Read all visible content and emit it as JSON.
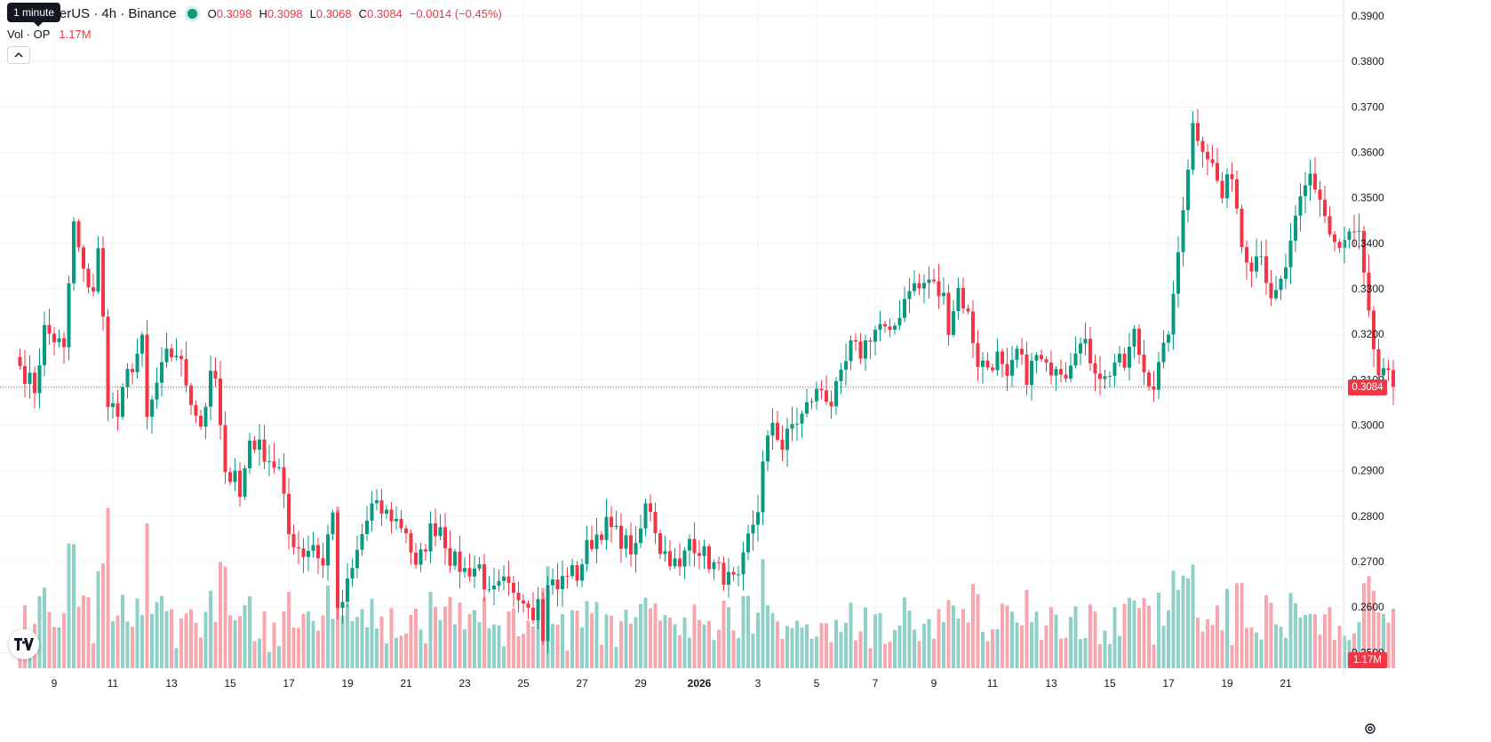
{
  "legend": {
    "tooltip": "1 minute",
    "symbol": "etherUS · 4h · Binance",
    "open_label": "O",
    "open": "0.3098",
    "high_label": "H",
    "high": "0.3098",
    "low_label": "L",
    "low": "0.3068",
    "close_label": "C",
    "close": "0.3084",
    "change": "−0.0014 (−0.45%)",
    "vol_label": "Vol · OP",
    "vol_value": "1.17M"
  },
  "price_tag": "0.3084",
  "volume_tag": "1.17M",
  "colors": {
    "up": "#089981",
    "down": "#f23645",
    "up_volume": "#8fd0c7",
    "down_volume": "#f7a7ad",
    "grid": "#f0f3fa"
  },
  "icons": [
    "tradingview-logo-icon",
    "gear-icon",
    "chevron-up-icon"
  ],
  "chart_data": {
    "type": "candlestick",
    "y_ticks": [
      "0.3900",
      "0.3800",
      "0.3700",
      "0.3600",
      "0.3500",
      "0.3400",
      "0.3300",
      "0.3200",
      "0.3100",
      "0.3000",
      "0.2900",
      "0.2800",
      "0.2700",
      "0.2600",
      "0.2500"
    ],
    "ylim": [
      0.245,
      0.3935
    ],
    "x_ticks": [
      {
        "label": "9",
        "index": 7
      },
      {
        "label": "11",
        "index": 19
      },
      {
        "label": "13",
        "index": 31
      },
      {
        "label": "15",
        "index": 43
      },
      {
        "label": "17",
        "index": 55
      },
      {
        "label": "19",
        "index": 67
      },
      {
        "label": "21",
        "index": 79
      },
      {
        "label": "23",
        "index": 91
      },
      {
        "label": "25",
        "index": 103
      },
      {
        "label": "27",
        "index": 115
      },
      {
        "label": "29",
        "index": 127
      },
      {
        "label": "2026",
        "index": 139,
        "bold": true
      },
      {
        "label": "3",
        "index": 151
      },
      {
        "label": "5",
        "index": 163
      },
      {
        "label": "7",
        "index": 175
      },
      {
        "label": "9",
        "index": 187
      },
      {
        "label": "11",
        "index": 199
      },
      {
        "label": "13",
        "index": 211
      },
      {
        "label": "15",
        "index": 223
      },
      {
        "label": "17",
        "index": 235
      },
      {
        "label": "19",
        "index": 247
      },
      {
        "label": "21",
        "index": 259
      }
    ],
    "last_price": 0.3084,
    "volume_max": 2.7,
    "anchors": [
      {
        "i": 0,
        "c": 0.313
      },
      {
        "i": 3,
        "c": 0.308
      },
      {
        "i": 5,
        "c": 0.321
      },
      {
        "i": 8,
        "c": 0.318
      },
      {
        "i": 9,
        "c": 0.316
      },
      {
        "i": 10,
        "c": 0.331
      },
      {
        "i": 11,
        "c": 0.344
      },
      {
        "i": 13,
        "c": 0.333
      },
      {
        "i": 15,
        "c": 0.33
      },
      {
        "i": 16,
        "c": 0.338
      },
      {
        "i": 17,
        "c": 0.323
      },
      {
        "i": 18,
        "c": 0.306
      },
      {
        "i": 20,
        "c": 0.302
      },
      {
        "i": 22,
        "c": 0.311
      },
      {
        "i": 25,
        "c": 0.318
      },
      {
        "i": 26,
        "c": 0.301
      },
      {
        "i": 28,
        "c": 0.309
      },
      {
        "i": 30,
        "c": 0.315
      },
      {
        "i": 32,
        "c": 0.316
      },
      {
        "i": 33,
        "c": 0.313
      },
      {
        "i": 35,
        "c": 0.306
      },
      {
        "i": 37,
        "c": 0.3
      },
      {
        "i": 39,
        "c": 0.31
      },
      {
        "i": 40,
        "c": 0.31
      },
      {
        "i": 42,
        "c": 0.288
      },
      {
        "i": 44,
        "c": 0.291
      },
      {
        "i": 45,
        "c": 0.284
      },
      {
        "i": 47,
        "c": 0.297
      },
      {
        "i": 50,
        "c": 0.294
      },
      {
        "i": 53,
        "c": 0.29
      },
      {
        "i": 55,
        "c": 0.276
      },
      {
        "i": 58,
        "c": 0.272
      },
      {
        "i": 60,
        "c": 0.274
      },
      {
        "i": 62,
        "c": 0.269
      },
      {
        "i": 64,
        "c": 0.282
      },
      {
        "i": 65,
        "c": 0.258
      },
      {
        "i": 68,
        "c": 0.268
      },
      {
        "i": 70,
        "c": 0.276
      },
      {
        "i": 72,
        "c": 0.282
      },
      {
        "i": 74,
        "c": 0.281
      },
      {
        "i": 76,
        "c": 0.28
      },
      {
        "i": 79,
        "c": 0.277
      },
      {
        "i": 81,
        "c": 0.268
      },
      {
        "i": 84,
        "c": 0.277
      },
      {
        "i": 86,
        "c": 0.278
      },
      {
        "i": 88,
        "c": 0.271
      },
      {
        "i": 91,
        "c": 0.268
      },
      {
        "i": 94,
        "c": 0.269
      },
      {
        "i": 96,
        "c": 0.262
      },
      {
        "i": 99,
        "c": 0.265
      },
      {
        "i": 101,
        "c": 0.262
      },
      {
        "i": 103,
        "c": 0.263
      },
      {
        "i": 105,
        "c": 0.259
      },
      {
        "i": 106,
        "c": 0.264
      },
      {
        "i": 107,
        "c": 0.252
      },
      {
        "i": 108,
        "c": 0.266
      },
      {
        "i": 110,
        "c": 0.264
      },
      {
        "i": 112,
        "c": 0.268
      },
      {
        "i": 114,
        "c": 0.267
      },
      {
        "i": 116,
        "c": 0.273
      },
      {
        "i": 118,
        "c": 0.276
      },
      {
        "i": 120,
        "c": 0.278
      },
      {
        "i": 122,
        "c": 0.276
      },
      {
        "i": 124,
        "c": 0.274
      },
      {
        "i": 126,
        "c": 0.272
      },
      {
        "i": 128,
        "c": 0.282
      },
      {
        "i": 129,
        "c": 0.282
      },
      {
        "i": 131,
        "c": 0.273
      },
      {
        "i": 133,
        "c": 0.271
      },
      {
        "i": 135,
        "c": 0.268
      },
      {
        "i": 137,
        "c": 0.275
      },
      {
        "i": 139,
        "c": 0.273
      },
      {
        "i": 141,
        "c": 0.27
      },
      {
        "i": 143,
        "c": 0.268
      },
      {
        "i": 145,
        "c": 0.266
      },
      {
        "i": 147,
        "c": 0.265
      },
      {
        "i": 149,
        "c": 0.275
      },
      {
        "i": 151,
        "c": 0.282
      },
      {
        "i": 152,
        "c": 0.291
      },
      {
        "i": 154,
        "c": 0.301
      },
      {
        "i": 156,
        "c": 0.295
      },
      {
        "i": 158,
        "c": 0.3
      },
      {
        "i": 160,
        "c": 0.302
      },
      {
        "i": 162,
        "c": 0.306
      },
      {
        "i": 164,
        "c": 0.308
      },
      {
        "i": 166,
        "c": 0.305
      },
      {
        "i": 168,
        "c": 0.31
      },
      {
        "i": 170,
        "c": 0.317
      },
      {
        "i": 172,
        "c": 0.316
      },
      {
        "i": 174,
        "c": 0.32
      },
      {
        "i": 176,
        "c": 0.322
      },
      {
        "i": 178,
        "c": 0.319
      },
      {
        "i": 180,
        "c": 0.325
      },
      {
        "i": 182,
        "c": 0.331
      },
      {
        "i": 184,
        "c": 0.33
      },
      {
        "i": 186,
        "c": 0.332
      },
      {
        "i": 188,
        "c": 0.329
      },
      {
        "i": 189,
        "c": 0.328
      },
      {
        "i": 190,
        "c": 0.322
      },
      {
        "i": 192,
        "c": 0.33
      },
      {
        "i": 194,
        "c": 0.324
      },
      {
        "i": 196,
        "c": 0.314
      },
      {
        "i": 198,
        "c": 0.313
      },
      {
        "i": 200,
        "c": 0.315
      },
      {
        "i": 202,
        "c": 0.309
      },
      {
        "i": 204,
        "c": 0.316
      },
      {
        "i": 206,
        "c": 0.311
      },
      {
        "i": 208,
        "c": 0.315
      },
      {
        "i": 210,
        "c": 0.312
      },
      {
        "i": 212,
        "c": 0.314
      },
      {
        "i": 214,
        "c": 0.312
      },
      {
        "i": 216,
        "c": 0.318
      },
      {
        "i": 218,
        "c": 0.317
      },
      {
        "i": 220,
        "c": 0.313
      },
      {
        "i": 222,
        "c": 0.31
      },
      {
        "i": 224,
        "c": 0.314
      },
      {
        "i": 226,
        "c": 0.313
      },
      {
        "i": 228,
        "c": 0.32
      },
      {
        "i": 230,
        "c": 0.312
      },
      {
        "i": 232,
        "c": 0.309
      },
      {
        "i": 234,
        "c": 0.316
      },
      {
        "i": 236,
        "c": 0.327
      },
      {
        "i": 238,
        "c": 0.349
      },
      {
        "i": 240,
        "c": 0.366
      },
      {
        "i": 242,
        "c": 0.362
      },
      {
        "i": 244,
        "c": 0.357
      },
      {
        "i": 246,
        "c": 0.35
      },
      {
        "i": 248,
        "c": 0.356
      },
      {
        "i": 250,
        "c": 0.34
      },
      {
        "i": 252,
        "c": 0.336
      },
      {
        "i": 254,
        "c": 0.339
      },
      {
        "i": 256,
        "c": 0.326
      },
      {
        "i": 258,
        "c": 0.331
      },
      {
        "i": 260,
        "c": 0.339
      },
      {
        "i": 262,
        "c": 0.349
      },
      {
        "i": 264,
        "c": 0.355
      },
      {
        "i": 266,
        "c": 0.35
      },
      {
        "i": 268,
        "c": 0.342
      },
      {
        "i": 270,
        "c": 0.338
      },
      {
        "i": 272,
        "c": 0.342
      },
      {
        "i": 274,
        "c": 0.341
      },
      {
        "i": 276,
        "c": 0.323
      },
      {
        "i": 278,
        "c": 0.311
      },
      {
        "i": 280,
        "c": 0.31
      },
      {
        "i": 281,
        "c": 0.3084
      }
    ]
  }
}
